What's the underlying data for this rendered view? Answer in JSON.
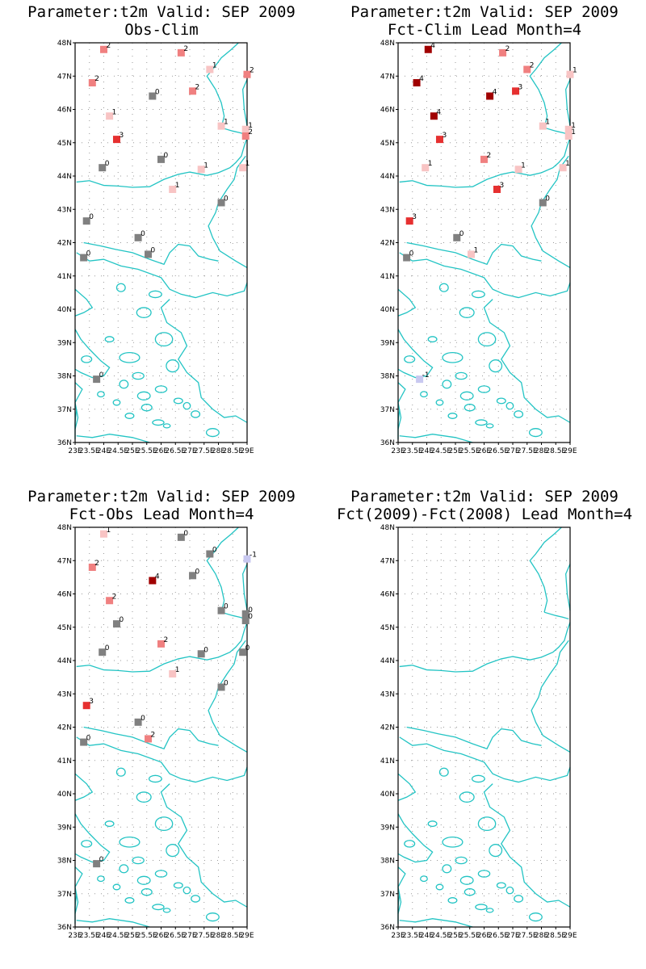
{
  "figure": {
    "colors": {
      "coast": "#23c4c4",
      "grid": "#9a9a9a",
      "v_-1": "#c8c8f0",
      "v_0": "#808080",
      "v_1": "#f8c4c4",
      "v_2": "#f08080",
      "v_3": "#e63030",
      "v_4": "#a00000"
    },
    "lon_tick_labels": [
      "23E",
      "23.5E",
      "24E",
      "24.5E",
      "25E",
      "25.5E",
      "26E",
      "26.5E",
      "27E",
      "27.5E",
      "28E",
      "28.5E",
      "29E"
    ],
    "lat_tick_labels": [
      "36N",
      "37N",
      "38N",
      "39N",
      "40N",
      "41N",
      "42N",
      "43N",
      "44N",
      "45N",
      "46N",
      "47N",
      "48N"
    ]
  },
  "panels": [
    {
      "title_line1": "Parameter:t2m Valid: SEP 2009",
      "title_line2": "Obs-Clim",
      "stations": [
        {
          "lon": 24.0,
          "lat": 47.8,
          "value": "2"
        },
        {
          "lon": 23.6,
          "lat": 46.8,
          "value": "2"
        },
        {
          "lon": 26.7,
          "lat": 47.7,
          "value": "2"
        },
        {
          "lon": 27.7,
          "lat": 47.2,
          "value": "1"
        },
        {
          "lon": 29.0,
          "lat": 47.05,
          "value": "2"
        },
        {
          "lon": 27.1,
          "lat": 46.55,
          "value": "2"
        },
        {
          "lon": 25.7,
          "lat": 46.4,
          "value": "0"
        },
        {
          "lon": 24.2,
          "lat": 45.8,
          "value": "1"
        },
        {
          "lon": 24.45,
          "lat": 45.1,
          "value": "3"
        },
        {
          "lon": 28.1,
          "lat": 45.5,
          "value": "1"
        },
        {
          "lon": 28.95,
          "lat": 45.4,
          "value": "1"
        },
        {
          "lon": 28.95,
          "lat": 45.2,
          "value": "2"
        },
        {
          "lon": 26.0,
          "lat": 44.5,
          "value": "0"
        },
        {
          "lon": 23.95,
          "lat": 44.25,
          "value": "0"
        },
        {
          "lon": 27.4,
          "lat": 44.2,
          "value": "1"
        },
        {
          "lon": 28.85,
          "lat": 44.25,
          "value": "1"
        },
        {
          "lon": 26.4,
          "lat": 43.6,
          "value": "1"
        },
        {
          "lon": 28.1,
          "lat": 43.2,
          "value": "0"
        },
        {
          "lon": 23.4,
          "lat": 42.65,
          "value": "0"
        },
        {
          "lon": 25.2,
          "lat": 42.15,
          "value": "0"
        },
        {
          "lon": 25.55,
          "lat": 41.65,
          "value": "0"
        },
        {
          "lon": 23.3,
          "lat": 41.55,
          "value": "0"
        },
        {
          "lon": 23.75,
          "lat": 37.9,
          "value": "0"
        }
      ]
    },
    {
      "title_line1": "Parameter:t2m Valid: SEP 2009",
      "title_line2": "Fct-Clim Lead Month=4",
      "stations": [
        {
          "lon": 24.05,
          "lat": 47.8,
          "value": "4"
        },
        {
          "lon": 23.65,
          "lat": 46.8,
          "value": "4"
        },
        {
          "lon": 26.65,
          "lat": 47.7,
          "value": "2"
        },
        {
          "lon": 27.5,
          "lat": 47.2,
          "value": "2"
        },
        {
          "lon": 29.0,
          "lat": 47.05,
          "value": "1"
        },
        {
          "lon": 27.1,
          "lat": 46.55,
          "value": "3"
        },
        {
          "lon": 26.2,
          "lat": 46.4,
          "value": "4"
        },
        {
          "lon": 24.25,
          "lat": 45.8,
          "value": "4"
        },
        {
          "lon": 24.45,
          "lat": 45.1,
          "value": "3"
        },
        {
          "lon": 28.05,
          "lat": 45.5,
          "value": "1"
        },
        {
          "lon": 28.95,
          "lat": 45.4,
          "value": "1"
        },
        {
          "lon": 28.95,
          "lat": 45.2,
          "value": "1"
        },
        {
          "lon": 26.0,
          "lat": 44.5,
          "value": "2"
        },
        {
          "lon": 23.95,
          "lat": 44.25,
          "value": "1"
        },
        {
          "lon": 27.2,
          "lat": 44.2,
          "value": "1"
        },
        {
          "lon": 28.75,
          "lat": 44.25,
          "value": "1"
        },
        {
          "lon": 26.45,
          "lat": 43.6,
          "value": "3"
        },
        {
          "lon": 28.05,
          "lat": 43.2,
          "value": "0"
        },
        {
          "lon": 23.4,
          "lat": 42.65,
          "value": "3"
        },
        {
          "lon": 25.05,
          "lat": 42.15,
          "value": "0"
        },
        {
          "lon": 25.55,
          "lat": 41.65,
          "value": "1"
        },
        {
          "lon": 23.3,
          "lat": 41.55,
          "value": "0"
        },
        {
          "lon": 23.75,
          "lat": 37.9,
          "value": "-1"
        }
      ]
    },
    {
      "title_line1": "Parameter:t2m Valid: SEP 2009",
      "title_line2": "Fct-Obs Lead Month=4",
      "stations": [
        {
          "lon": 24.0,
          "lat": 47.8,
          "value": "1"
        },
        {
          "lon": 23.6,
          "lat": 46.8,
          "value": "2"
        },
        {
          "lon": 26.7,
          "lat": 47.7,
          "value": "0"
        },
        {
          "lon": 27.7,
          "lat": 47.2,
          "value": "0"
        },
        {
          "lon": 29.0,
          "lat": 47.05,
          "value": "-1"
        },
        {
          "lon": 27.1,
          "lat": 46.55,
          "value": "0"
        },
        {
          "lon": 25.7,
          "lat": 46.4,
          "value": "4"
        },
        {
          "lon": 24.2,
          "lat": 45.8,
          "value": "2"
        },
        {
          "lon": 24.45,
          "lat": 45.1,
          "value": "0"
        },
        {
          "lon": 28.1,
          "lat": 45.5,
          "value": "0"
        },
        {
          "lon": 28.95,
          "lat": 45.4,
          "value": "0"
        },
        {
          "lon": 28.95,
          "lat": 45.2,
          "value": "0"
        },
        {
          "lon": 26.0,
          "lat": 44.5,
          "value": "2"
        },
        {
          "lon": 23.95,
          "lat": 44.25,
          "value": "0"
        },
        {
          "lon": 27.4,
          "lat": 44.2,
          "value": "0"
        },
        {
          "lon": 28.85,
          "lat": 44.25,
          "value": "0"
        },
        {
          "lon": 26.4,
          "lat": 43.6,
          "value": "1"
        },
        {
          "lon": 28.1,
          "lat": 43.2,
          "value": "0"
        },
        {
          "lon": 23.4,
          "lat": 42.65,
          "value": "3"
        },
        {
          "lon": 25.2,
          "lat": 42.15,
          "value": "0"
        },
        {
          "lon": 25.55,
          "lat": 41.65,
          "value": "2"
        },
        {
          "lon": 23.3,
          "lat": 41.55,
          "value": "0"
        },
        {
          "lon": 23.75,
          "lat": 37.9,
          "value": "0"
        }
      ]
    },
    {
      "title_line1": "Parameter:t2m Valid: SEP 2009",
      "title_line2": "Fct(2009)-Fct(2008) Lead Month=4",
      "stations": []
    }
  ]
}
